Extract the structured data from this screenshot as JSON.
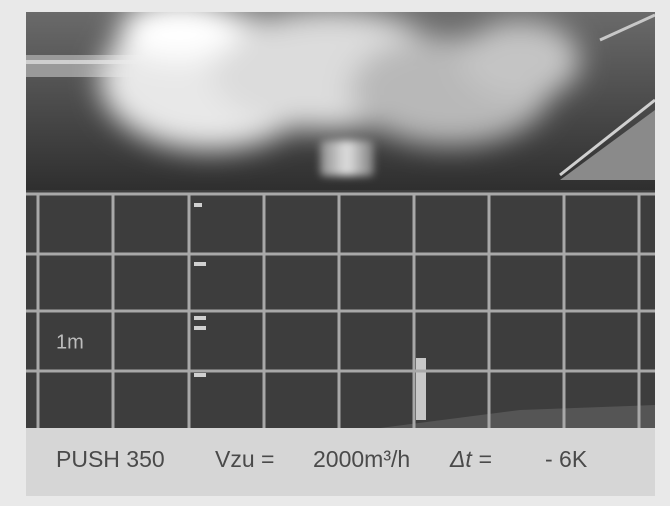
{
  "overlay": {
    "scale_label": "1m"
  },
  "caption": {
    "parts": [
      "PUSH 350",
      "Vzu =",
      "2000m³/h",
      "Δt =",
      "- 6K"
    ]
  }
}
